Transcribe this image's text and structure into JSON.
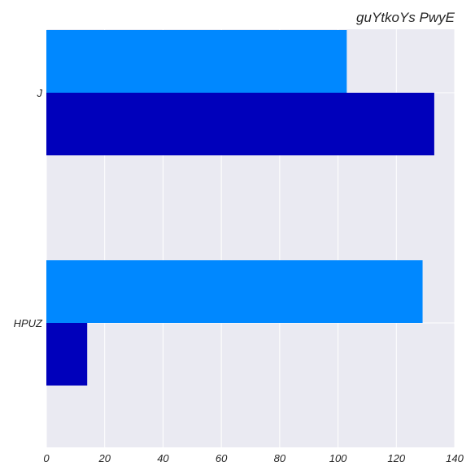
{
  "chart_data": {
    "type": "bar",
    "orientation": "horizontal",
    "title": "guYtkoYs  PwyE",
    "xlabel": "",
    "ylabel": "",
    "categories": [
      "J",
      "HPUZ"
    ],
    "series": [
      {
        "color": "#0088FF",
        "values": [
          103,
          129
        ]
      },
      {
        "color": "#0000BB",
        "values": [
          133,
          14
        ]
      }
    ],
    "xlim": [
      0,
      140
    ],
    "xticks": [
      0,
      20,
      40,
      60,
      80,
      100,
      120,
      140
    ],
    "grid": true,
    "legend": false,
    "background": "#EAEAF2"
  }
}
